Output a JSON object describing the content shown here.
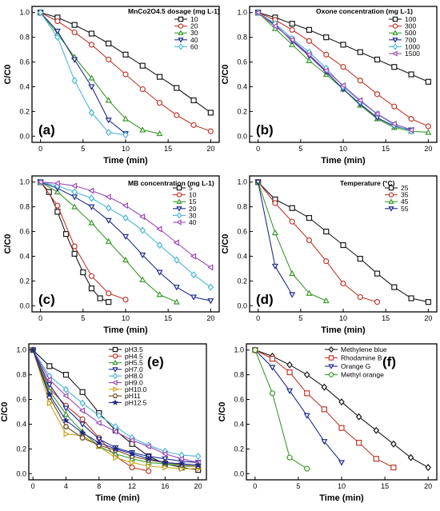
{
  "chart_data": [
    {
      "type": "line",
      "panel_label": "(a)",
      "xlabel": "Time (min)",
      "ylabel": "C/C0",
      "xlim": [
        -1,
        21
      ],
      "ylim": [
        -0.05,
        1.05
      ],
      "xticks": [
        0,
        5,
        10,
        15,
        20
      ],
      "yticks": [
        0.0,
        0.2,
        0.4,
        0.6,
        0.8,
        1.0
      ],
      "legend_title": "MnCo2O4.5 dosage (mg L-1)",
      "legend_position": "top-right",
      "series": [
        {
          "name": "10",
          "color": "#1a1a1a",
          "marker": "square",
          "x": [
            0,
            2,
            4,
            6,
            8,
            10,
            12,
            14,
            16,
            18,
            20
          ],
          "y": [
            1.0,
            0.96,
            0.9,
            0.83,
            0.75,
            0.66,
            0.57,
            0.48,
            0.39,
            0.29,
            0.19
          ]
        },
        {
          "name": "20",
          "color": "#c0392b",
          "marker": "circle",
          "x": [
            0,
            2,
            4,
            6,
            8,
            10,
            12,
            14,
            16,
            18,
            20
          ],
          "y": [
            1.0,
            0.93,
            0.84,
            0.74,
            0.62,
            0.5,
            0.38,
            0.27,
            0.17,
            0.09,
            0.04
          ]
        },
        {
          "name": "30",
          "color": "#3a9a2a",
          "marker": "triangle-up",
          "x": [
            0,
            2,
            4,
            6,
            8,
            10,
            12,
            14
          ],
          "y": [
            1.0,
            0.83,
            0.64,
            0.47,
            0.29,
            0.14,
            0.05,
            0.02
          ]
        },
        {
          "name": "40",
          "color": "#1f2a8c",
          "marker": "triangle-down",
          "x": [
            0,
            2,
            4,
            6,
            8,
            10
          ],
          "y": [
            1.0,
            0.85,
            0.62,
            0.4,
            0.13,
            0.02
          ]
        },
        {
          "name": "60",
          "color": "#4db6d8",
          "marker": "diamond",
          "x": [
            0,
            2,
            4,
            6,
            8,
            10
          ],
          "y": [
            1.0,
            0.8,
            0.45,
            0.19,
            0.03,
            0.01
          ]
        }
      ]
    },
    {
      "type": "line",
      "panel_label": "(b)",
      "xlabel": "Time (min)",
      "ylabel": "C/C0",
      "xlim": [
        -1,
        21
      ],
      "ylim": [
        -0.05,
        1.05
      ],
      "xticks": [
        0,
        5,
        10,
        15,
        20
      ],
      "yticks": [
        0.0,
        0.2,
        0.4,
        0.6,
        0.8,
        1.0
      ],
      "legend_title": "Oxone concentration (mg L-1)",
      "legend_position": "top-right",
      "series": [
        {
          "name": "100",
          "color": "#1a1a1a",
          "marker": "square",
          "x": [
            0,
            2,
            4,
            6,
            8,
            10,
            12,
            14,
            16,
            18,
            20
          ],
          "y": [
            1.0,
            0.96,
            0.91,
            0.86,
            0.8,
            0.74,
            0.68,
            0.62,
            0.56,
            0.5,
            0.44
          ]
        },
        {
          "name": "300",
          "color": "#c0392b",
          "marker": "circle",
          "x": [
            0,
            2,
            4,
            6,
            8,
            10,
            12,
            14,
            16,
            18,
            20
          ],
          "y": [
            1.0,
            0.94,
            0.86,
            0.77,
            0.66,
            0.56,
            0.45,
            0.34,
            0.24,
            0.14,
            0.08
          ]
        },
        {
          "name": "500",
          "color": "#3a9a2a",
          "marker": "triangle-up",
          "x": [
            0,
            2,
            4,
            6,
            8,
            10,
            12,
            14,
            16,
            18,
            20
          ],
          "y": [
            1.0,
            0.87,
            0.74,
            0.61,
            0.5,
            0.38,
            0.25,
            0.14,
            0.07,
            0.04,
            0.03
          ]
        },
        {
          "name": "700",
          "color": "#1f2a8c",
          "marker": "triangle-down",
          "x": [
            0,
            2,
            4,
            6,
            8,
            10,
            12,
            14,
            16,
            18
          ],
          "y": [
            1.0,
            0.9,
            0.77,
            0.65,
            0.52,
            0.38,
            0.26,
            0.15,
            0.08,
            0.05
          ]
        },
        {
          "name": "1000",
          "color": "#4db6d8",
          "marker": "diamond",
          "x": [
            0,
            2,
            4,
            6,
            8,
            10,
            12,
            14,
            16,
            18
          ],
          "y": [
            1.0,
            0.91,
            0.79,
            0.68,
            0.55,
            0.4,
            0.28,
            0.18,
            0.09,
            0.04
          ]
        },
        {
          "name": "1500",
          "color": "#9a4ab5",
          "marker": "triangle-left",
          "x": [
            0,
            2,
            4,
            6,
            8,
            10,
            12,
            14,
            16,
            18
          ],
          "y": [
            1.0,
            0.89,
            0.78,
            0.66,
            0.53,
            0.41,
            0.29,
            0.18,
            0.1,
            0.05
          ]
        }
      ]
    },
    {
      "type": "line",
      "panel_label": "(c)",
      "xlabel": "Time (min)",
      "ylabel": "C/C0",
      "xlim": [
        -1,
        21
      ],
      "ylim": [
        -0.05,
        1.05
      ],
      "xticks": [
        0,
        5,
        10,
        15,
        20
      ],
      "yticks": [
        0.0,
        0.2,
        0.4,
        0.6,
        0.8,
        1.0
      ],
      "legend_title": "MB concentration (mg L-1)",
      "legend_position": "top-right",
      "series": [
        {
          "name": "5",
          "color": "#1a1a1a",
          "marker": "square",
          "x": [
            0,
            1,
            2,
            3,
            4,
            5,
            6,
            7,
            8
          ],
          "y": [
            1.0,
            0.92,
            0.76,
            0.58,
            0.42,
            0.27,
            0.14,
            0.06,
            0.03
          ]
        },
        {
          "name": "10",
          "color": "#c0392b",
          "marker": "circle",
          "x": [
            0,
            2,
            4,
            6,
            8,
            10
          ],
          "y": [
            1.0,
            0.81,
            0.48,
            0.24,
            0.1,
            0.05
          ]
        },
        {
          "name": "15",
          "color": "#3a9a2a",
          "marker": "triangle-up",
          "x": [
            0,
            2,
            4,
            6,
            8,
            10,
            12,
            14,
            16
          ],
          "y": [
            1.0,
            0.92,
            0.8,
            0.67,
            0.52,
            0.37,
            0.21,
            0.09,
            0.03
          ]
        },
        {
          "name": "20",
          "color": "#1f2a8c",
          "marker": "triangle-down",
          "x": [
            0,
            2,
            4,
            6,
            8,
            10,
            12,
            14,
            16,
            18,
            20
          ],
          "y": [
            1.0,
            0.95,
            0.88,
            0.8,
            0.69,
            0.56,
            0.41,
            0.27,
            0.15,
            0.07,
            0.04
          ]
        },
        {
          "name": "30",
          "color": "#4db6d8",
          "marker": "diamond",
          "x": [
            0,
            2,
            4,
            6,
            8,
            10,
            12,
            14,
            16,
            18,
            20
          ],
          "y": [
            1.0,
            0.97,
            0.92,
            0.87,
            0.79,
            0.71,
            0.61,
            0.49,
            0.37,
            0.25,
            0.15
          ]
        },
        {
          "name": "40",
          "color": "#9a4ab5",
          "marker": "triangle-left",
          "x": [
            0,
            2,
            4,
            6,
            8,
            10,
            12,
            14,
            16,
            18,
            20
          ],
          "y": [
            1.0,
            0.99,
            0.97,
            0.93,
            0.88,
            0.81,
            0.72,
            0.62,
            0.51,
            0.4,
            0.31
          ]
        }
      ]
    },
    {
      "type": "line",
      "panel_label": "(d)",
      "xlabel": "Time (min)",
      "ylabel": "C/C0",
      "xlim": [
        -1,
        21
      ],
      "ylim": [
        -0.05,
        1.05
      ],
      "xticks": [
        0,
        5,
        10,
        15,
        20
      ],
      "yticks": [
        0.0,
        0.2,
        0.4,
        0.6,
        0.8,
        1.0
      ],
      "legend_title": "Temperature (°C)",
      "legend_position": "top-right",
      "series": [
        {
          "name": "25",
          "color": "#1a1a1a",
          "marker": "square",
          "x": [
            0,
            2,
            4,
            6,
            8,
            10,
            12,
            14,
            16,
            18,
            20
          ],
          "y": [
            1.0,
            0.86,
            0.79,
            0.71,
            0.6,
            0.49,
            0.38,
            0.26,
            0.15,
            0.06,
            0.03
          ]
        },
        {
          "name": "35",
          "color": "#c0392b",
          "marker": "circle",
          "x": [
            0,
            2,
            4,
            6,
            8,
            10,
            12,
            14
          ],
          "y": [
            1.0,
            0.83,
            0.68,
            0.53,
            0.36,
            0.18,
            0.07,
            0.03
          ]
        },
        {
          "name": "45",
          "color": "#3a9a2a",
          "marker": "triangle-up",
          "x": [
            0,
            2,
            4,
            6,
            8
          ],
          "y": [
            1.0,
            0.59,
            0.26,
            0.1,
            0.04
          ]
        },
        {
          "name": "55",
          "color": "#1f2a8c",
          "marker": "triangle-down",
          "x": [
            0,
            2,
            4
          ],
          "y": [
            1.0,
            0.32,
            0.09
          ]
        }
      ]
    },
    {
      "type": "line",
      "panel_label": "(e)",
      "xlabel": "Time (min)",
      "ylabel": "C/C0",
      "xlim": [
        -0.5,
        21
      ],
      "ylim": [
        -0.05,
        1.05
      ],
      "xticks": [
        0,
        4,
        8,
        12,
        16,
        20
      ],
      "yticks": [
        0.0,
        0.2,
        0.4,
        0.6,
        0.8,
        1.0
      ],
      "legend_title": "",
      "legend_position": "top-right",
      "series": [
        {
          "name": "pH3.5",
          "color": "#1a1a1a",
          "marker": "square",
          "x": [
            0,
            2,
            4,
            6,
            8,
            10,
            12,
            14,
            16,
            18,
            20
          ],
          "y": [
            1.0,
            0.87,
            0.8,
            0.66,
            0.49,
            0.35,
            0.24,
            0.14,
            0.08,
            0.05,
            0.03
          ]
        },
        {
          "name": "pH4.5",
          "color": "#c0392b",
          "marker": "circle",
          "x": [
            0,
            2,
            4,
            6,
            8,
            10,
            12,
            14
          ],
          "y": [
            1.0,
            0.69,
            0.55,
            0.44,
            0.29,
            0.14,
            0.05,
            0.02
          ]
        },
        {
          "name": "pH5.5",
          "color": "#3a9a2a",
          "marker": "triangle-up",
          "x": [
            0,
            2,
            4,
            6,
            8,
            10,
            12,
            14,
            16,
            18,
            20
          ],
          "y": [
            1.0,
            0.67,
            0.48,
            0.34,
            0.22,
            0.16,
            0.12,
            0.09,
            0.08,
            0.06,
            0.06
          ]
        },
        {
          "name": "pH7.0",
          "color": "#1f2a8c",
          "marker": "triangle-down",
          "x": [
            0,
            2,
            4,
            6,
            8,
            10,
            12,
            14,
            16,
            18,
            20
          ],
          "y": [
            1.0,
            0.72,
            0.53,
            0.4,
            0.28,
            0.21,
            0.17,
            0.14,
            0.12,
            0.1,
            0.09
          ]
        },
        {
          "name": "pH8.0",
          "color": "#4db6d8",
          "marker": "diamond",
          "x": [
            0,
            2,
            4,
            6,
            8,
            10,
            12,
            14,
            16,
            18,
            20
          ],
          "y": [
            1.0,
            0.79,
            0.68,
            0.57,
            0.47,
            0.38,
            0.29,
            0.23,
            0.18,
            0.15,
            0.14
          ]
        },
        {
          "name": "pH9.0",
          "color": "#9a4ab5",
          "marker": "triangle-left",
          "x": [
            0,
            2,
            4,
            6,
            8,
            10,
            12,
            14,
            16,
            18,
            20
          ],
          "y": [
            1.0,
            0.76,
            0.63,
            0.51,
            0.41,
            0.34,
            0.27,
            0.22,
            0.16,
            0.12,
            0.09
          ]
        },
        {
          "name": "pH10.0",
          "color": "#c7a321",
          "marker": "triangle-right",
          "x": [
            0,
            2,
            4,
            6,
            8,
            10,
            12,
            14,
            16,
            18,
            20
          ],
          "y": [
            1.0,
            0.57,
            0.32,
            0.31,
            0.22,
            0.13,
            0.09,
            0.06,
            0.05,
            0.04,
            0.04
          ]
        },
        {
          "name": "pH11",
          "color": "#6b4a1a",
          "marker": "hexagon",
          "x": [
            0,
            2,
            4,
            6,
            8,
            10,
            12,
            14,
            16,
            18,
            20
          ],
          "y": [
            1.0,
            0.62,
            0.38,
            0.29,
            0.23,
            0.19,
            0.14,
            0.11,
            0.09,
            0.07,
            0.06
          ]
        },
        {
          "name": "pH12.5",
          "color": "#1f2a8c",
          "marker": "star",
          "x": [
            0,
            2,
            4,
            6,
            8,
            10,
            12,
            14,
            16,
            18,
            20
          ],
          "y": [
            1.0,
            0.64,
            0.43,
            0.33,
            0.25,
            0.2,
            0.16,
            0.12,
            0.09,
            0.08,
            0.07
          ]
        }
      ]
    },
    {
      "type": "line",
      "panel_label": "(f)",
      "xlabel": "Time (min)",
      "ylabel": "C/C0",
      "xlim": [
        -1,
        21
      ],
      "ylim": [
        -0.05,
        1.05
      ],
      "xticks": [
        0,
        5,
        10,
        15,
        20
      ],
      "yticks": [
        0.0,
        0.2,
        0.4,
        0.6,
        0.8,
        1.0
      ],
      "legend_title": "",
      "legend_position": "top-right",
      "series": [
        {
          "name": "Methylene blue",
          "color": "#1a1a1a",
          "marker": "diamond",
          "x": [
            0,
            2,
            4,
            6,
            8,
            10,
            12,
            14,
            16,
            18,
            20
          ],
          "y": [
            1.0,
            0.95,
            0.88,
            0.8,
            0.7,
            0.58,
            0.46,
            0.35,
            0.24,
            0.13,
            0.05
          ]
        },
        {
          "name": "Rhodamine B",
          "color": "#c0392b",
          "marker": "square",
          "x": [
            0,
            2,
            4,
            6,
            8,
            10,
            12,
            14,
            16
          ],
          "y": [
            1.0,
            0.93,
            0.82,
            0.65,
            0.52,
            0.37,
            0.25,
            0.12,
            0.05
          ]
        },
        {
          "name": "Orange G",
          "color": "#1f2a8c",
          "marker": "triangle-down",
          "x": [
            0,
            2,
            4,
            6,
            8,
            10
          ],
          "y": [
            1.0,
            0.86,
            0.67,
            0.47,
            0.26,
            0.09
          ]
        },
        {
          "name": "Methyl orange",
          "color": "#3a9a2a",
          "marker": "circle",
          "x": [
            0,
            2,
            4,
            6
          ],
          "y": [
            1.0,
            0.65,
            0.13,
            0.04
          ]
        }
      ]
    }
  ]
}
